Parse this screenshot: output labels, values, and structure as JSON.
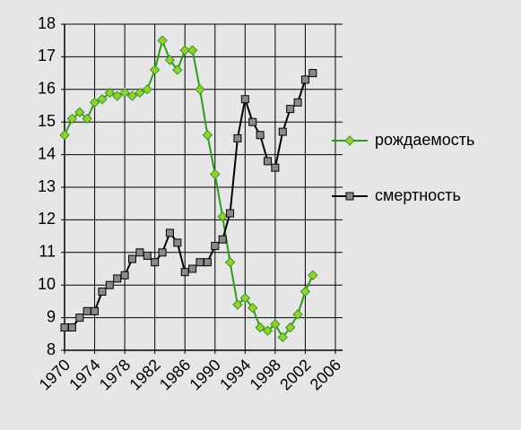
{
  "chart_data": {
    "type": "line",
    "x": [
      1970,
      1971,
      1972,
      1973,
      1974,
      1975,
      1976,
      1977,
      1978,
      1979,
      1980,
      1981,
      1982,
      1983,
      1984,
      1985,
      1986,
      1987,
      1988,
      1989,
      1990,
      1991,
      1992,
      1993,
      1994,
      1995,
      1996,
      1997,
      1998,
      1999,
      2000,
      2001,
      2002,
      2003
    ],
    "series": [
      {
        "name": "рождаемость",
        "color": "#2e9a1e",
        "marker": "diamond",
        "marker_color": "#9acd32",
        "values": [
          14.6,
          15.1,
          15.3,
          15.1,
          15.6,
          15.7,
          15.9,
          15.8,
          15.9,
          15.8,
          15.9,
          16.0,
          16.6,
          17.5,
          16.9,
          16.6,
          17.2,
          17.2,
          16.0,
          14.6,
          13.4,
          12.1,
          10.7,
          9.4,
          9.6,
          9.3,
          8.7,
          8.6,
          8.8,
          8.4,
          8.7,
          9.1,
          9.8,
          10.3
        ]
      },
      {
        "name": "смертность",
        "color": "#000000",
        "marker": "square",
        "marker_color": "#8a8a8a",
        "values": [
          8.7,
          8.7,
          9.0,
          9.2,
          9.2,
          9.8,
          10.0,
          10.2,
          10.3,
          10.8,
          11.0,
          10.9,
          10.7,
          11.0,
          11.6,
          11.3,
          10.4,
          10.5,
          10.7,
          10.7,
          11.2,
          11.4,
          12.2,
          14.5,
          15.7,
          15.0,
          14.6,
          13.8,
          13.6,
          14.7,
          15.4,
          15.6,
          16.3,
          16.5
        ]
      }
    ],
    "xlim": [
      1970,
      2006
    ],
    "xticks": [
      1970,
      1974,
      1978,
      1982,
      1986,
      1990,
      1994,
      1998,
      2002,
      2006
    ],
    "ylim": [
      8,
      18
    ],
    "yticks": [
      8,
      9,
      10,
      11,
      12,
      13,
      14,
      15,
      16,
      17,
      18
    ],
    "grid": true,
    "legend": "right"
  }
}
